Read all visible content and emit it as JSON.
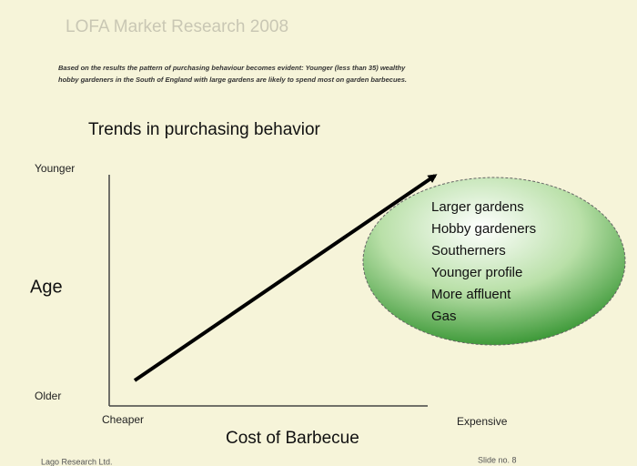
{
  "header": {
    "title": "LOFA Market Research 2008",
    "summary": [
      "Based on the results the pattern of purchasing behaviour becomes evident: Younger (less than 35) wealthy",
      "hobby gardeners in the South of England with large gardens are likely to spend most on garden barbecues."
    ]
  },
  "diagram": {
    "title": "Trends in purchasing behavior",
    "y_axis": {
      "label": "Age",
      "top": "Younger",
      "bottom": "Older"
    },
    "x_axis": {
      "label": "Cost of Barbecue",
      "left": "Cheaper",
      "right": "Expensive"
    },
    "profile": [
      "Larger gardens",
      "Hobby gardeners",
      "Southerners",
      "Younger profile",
      "More affluent",
      "Gas"
    ]
  },
  "footer": {
    "left": "Lago Research Ltd.",
    "right": "Slide no. 8"
  }
}
